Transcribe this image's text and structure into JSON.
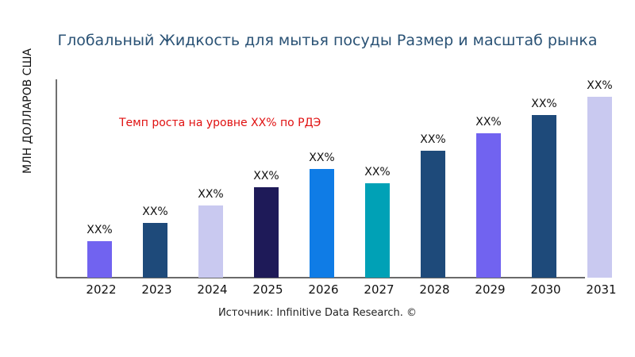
{
  "chart_data": {
    "type": "bar",
    "title": "Глобальный Жидкость для мытья посуды Размер и масштаб рынка",
    "ylabel": "МЛН ДОЛЛАРОВ США",
    "xlabel": "",
    "categories": [
      "2022",
      "2023",
      "2024",
      "2025",
      "2026",
      "2027",
      "2028",
      "2029",
      "2030",
      "2031"
    ],
    "values": [
      46,
      69,
      91,
      114,
      137,
      119,
      160,
      182,
      205,
      228
    ],
    "data_labels": [
      "XX%",
      "XX%",
      "XX%",
      "XX%",
      "XX%",
      "XX%",
      "XX%",
      "XX%",
      "XX%",
      "XX%"
    ],
    "colors": [
      "#7163f0",
      "#1e4a7a",
      "#c9c9f0",
      "#1e1a58",
      "#0f7ce6",
      "#00a1b6",
      "#1e4a7a",
      "#7163f0",
      "#1e4a7a",
      "#c9c9f0"
    ],
    "ylim": [
      0,
      250
    ],
    "grid": false,
    "annotation": "Темп роста на уровне XX% по РДЭ"
  },
  "source": "Источник: Infinitive Data Research. ©"
}
